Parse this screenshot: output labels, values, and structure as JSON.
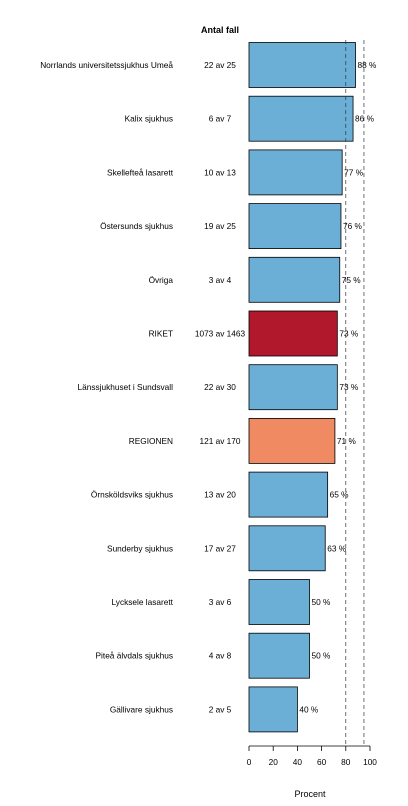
{
  "chart_data": {
    "type": "bar",
    "orientation": "horizontal",
    "count_header": "Antal fall",
    "xlabel": "Procent",
    "xlim": [
      0,
      100
    ],
    "xticks": [
      0,
      20,
      40,
      60,
      80,
      100
    ],
    "reference_lines": [
      80,
      95
    ],
    "reference_line_style": "dashed",
    "grid": false,
    "categories": [
      "Norrlands universitetssjukhus Umeå",
      "Kalix sjukhus",
      "Skellefteå lasarett",
      "Östersunds sjukhus",
      "Övriga",
      "RIKET",
      "Länssjukhuset i Sundsvall",
      "REGIONEN",
      "Örnsköldsviks sjukhus",
      "Sunderby sjukhus",
      "Lycksele lasarett",
      "Piteå älvdals sjukhus",
      "Gällivare sjukhus"
    ],
    "counts": [
      "22 av 25",
      "6 av 7",
      "10 av 13",
      "19 av 25",
      "3 av 4",
      "1073 av 1463",
      "22 av 30",
      "121 av 170",
      "13 av 20",
      "17 av 27",
      "3 av 6",
      "4 av 8",
      "2 av 5"
    ],
    "values": [
      88,
      86,
      77,
      76,
      75,
      73,
      73,
      71,
      65,
      63,
      50,
      50,
      40
    ],
    "value_labels": [
      "88 %",
      "86 %",
      "77 %",
      "76 %",
      "75 %",
      "73 %",
      "73 %",
      "71 %",
      "65 %",
      "63 %",
      "50 %",
      "50 %",
      "40 %"
    ],
    "bar_colors": [
      "#6baed6",
      "#6baed6",
      "#6baed6",
      "#6baed6",
      "#6baed6",
      "#b2182b",
      "#6baed6",
      "#ef8a62",
      "#6baed6",
      "#6baed6",
      "#6baed6",
      "#6baed6",
      "#6baed6"
    ],
    "default_color": "#6baed6",
    "national_color": "#b2182b",
    "region_color": "#ef8a62"
  }
}
